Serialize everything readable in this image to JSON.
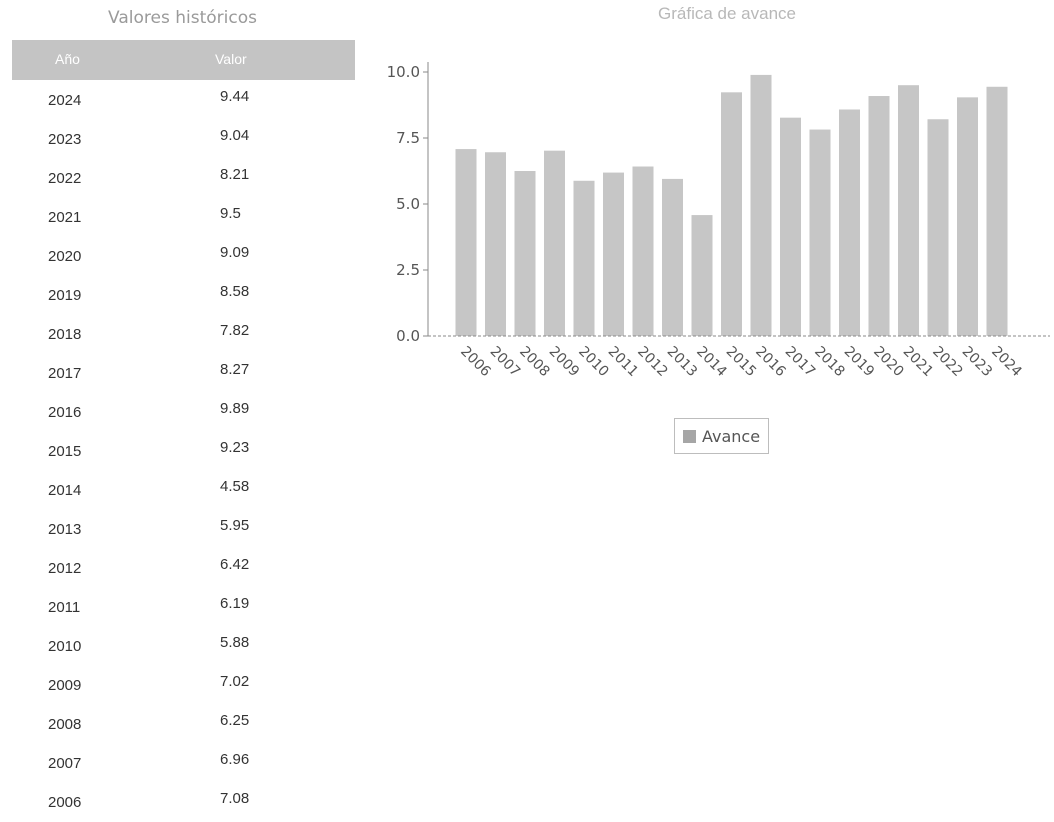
{
  "table": {
    "title": "Valores históricos",
    "headers": {
      "year": "Año",
      "value": "Valor"
    },
    "rows": [
      {
        "year": "2024",
        "value": "9.44"
      },
      {
        "year": "2023",
        "value": "9.04"
      },
      {
        "year": "2022",
        "value": "8.21"
      },
      {
        "year": "2021",
        "value": "9.5"
      },
      {
        "year": "2020",
        "value": "9.09"
      },
      {
        "year": "2019",
        "value": "8.58"
      },
      {
        "year": "2018",
        "value": "7.82"
      },
      {
        "year": "2017",
        "value": "8.27"
      },
      {
        "year": "2016",
        "value": "9.89"
      },
      {
        "year": "2015",
        "value": "9.23"
      },
      {
        "year": "2014",
        "value": "4.58"
      },
      {
        "year": "2013",
        "value": "5.95"
      },
      {
        "year": "2012",
        "value": "6.42"
      },
      {
        "year": "2011",
        "value": "6.19"
      },
      {
        "year": "2010",
        "value": "5.88"
      },
      {
        "year": "2009",
        "value": "7.02"
      },
      {
        "year": "2008",
        "value": "6.25"
      },
      {
        "year": "2007",
        "value": "6.96"
      },
      {
        "year": "2006",
        "value": "7.08"
      }
    ]
  },
  "chart_data": {
    "type": "bar",
    "title": "Gráfica de avance",
    "categories": [
      "2006",
      "2007",
      "2008",
      "2009",
      "2010",
      "2011",
      "2012",
      "2013",
      "2014",
      "2015",
      "2016",
      "2017",
      "2018",
      "2019",
      "2020",
      "2021",
      "2022",
      "2023",
      "2024"
    ],
    "series": [
      {
        "name": "Avance",
        "values": [
          7.08,
          6.96,
          6.25,
          7.02,
          5.88,
          6.19,
          6.42,
          5.95,
          4.58,
          9.23,
          9.89,
          8.27,
          7.82,
          8.58,
          9.09,
          9.5,
          8.21,
          9.04,
          9.44
        ]
      }
    ],
    "ylim": [
      0,
      10
    ],
    "yticks": [
      "0.0",
      "2.5",
      "5.0",
      "7.5",
      "10.0"
    ],
    "ytick_values": [
      0,
      2.5,
      5,
      7.5,
      10
    ],
    "xlabel": "",
    "ylabel": "",
    "legend_position": "bottom-center",
    "grid": false,
    "colors": {
      "bar": "#c6c6c6",
      "axis": "#8a8a8a",
      "text": "#555555"
    }
  }
}
